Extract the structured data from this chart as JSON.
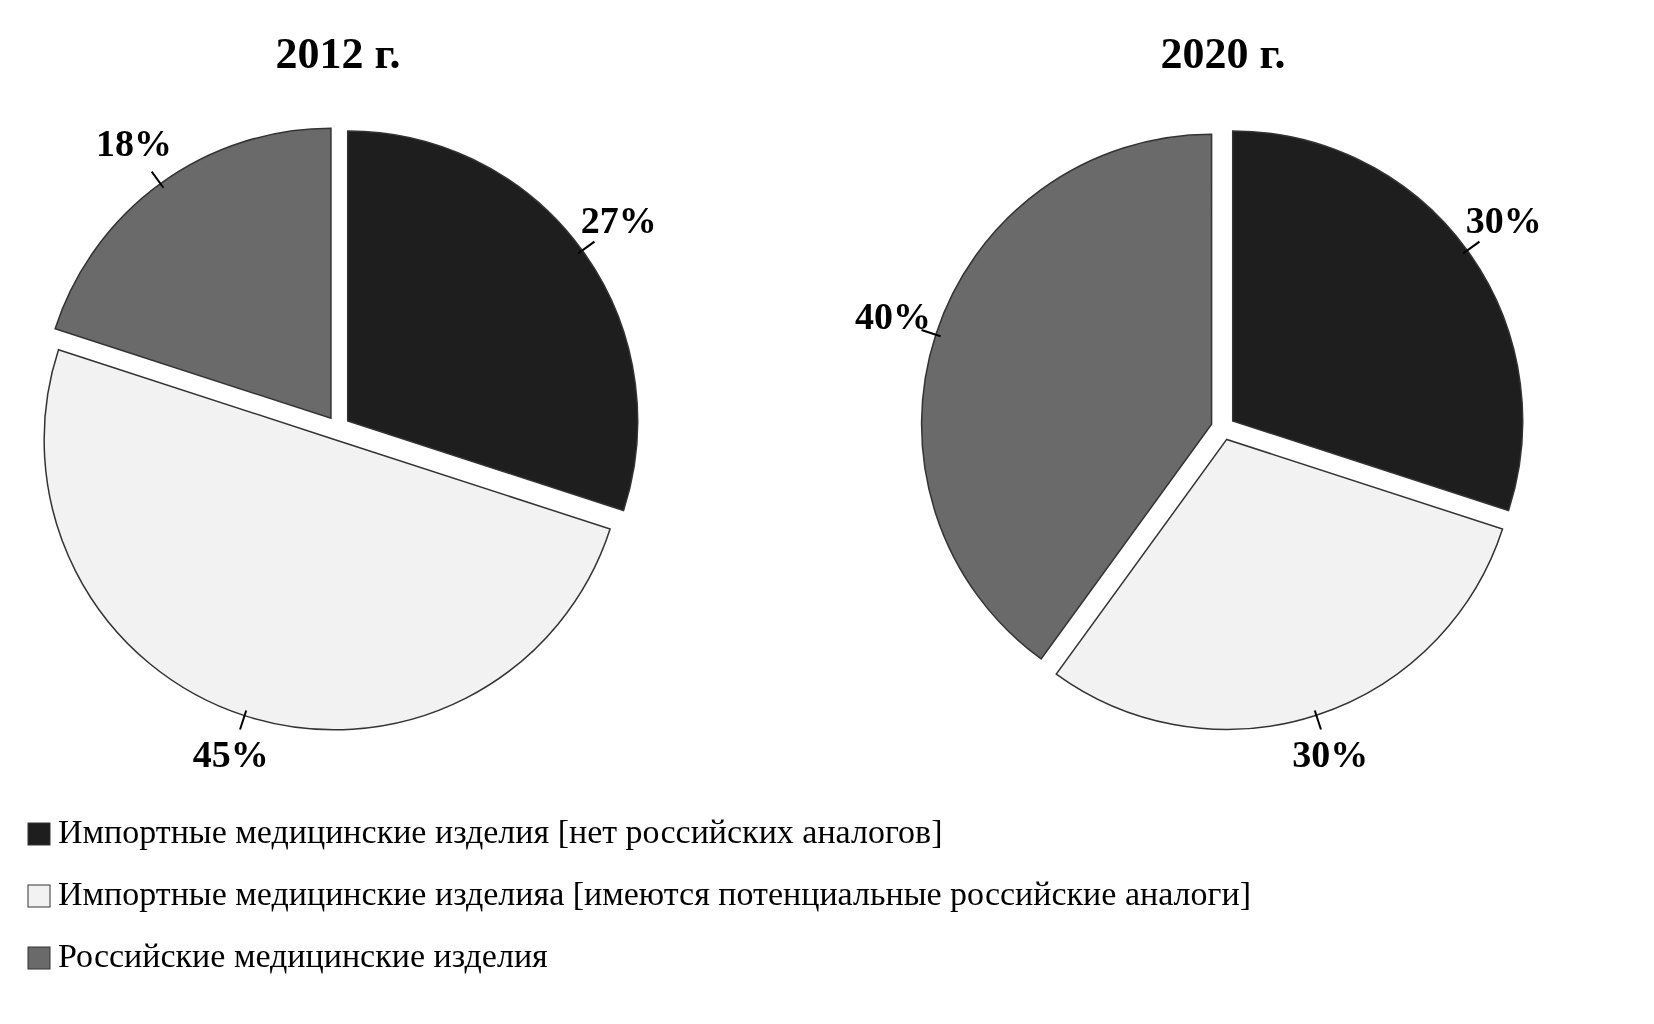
{
  "chart_data": [
    {
      "type": "pie",
      "title": "2012 г.",
      "categories": [
        "Импортные медицинские изделия [нет российских аналогов]",
        "Импортные медицинские изделияа [имеются потенциальные российские аналоги]",
        "Российские медицинские изделия"
      ],
      "values": [
        27,
        45,
        18
      ],
      "value_labels": [
        "27%",
        "45%",
        "18%"
      ],
      "colors": [
        "#1e1e1e",
        "#f2f2f2",
        "#6a6a6a"
      ],
      "legend": "bottom"
    },
    {
      "type": "pie",
      "title": "2020 г.",
      "values": [
        30,
        30,
        40
      ],
      "value_labels": [
        "30%",
        "30%",
        "40%"
      ],
      "colors": [
        "#1e1e1e",
        "#f2f2f2",
        "#6a6a6a"
      ]
    }
  ]
}
